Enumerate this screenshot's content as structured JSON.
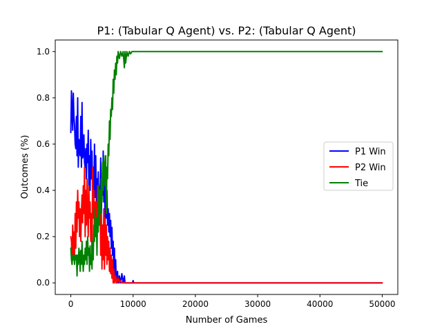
{
  "chart_data": {
    "type": "line",
    "title": "P1: (Tabular Q Agent) vs. P2: (Tabular Q Agent)",
    "xlabel": "Number of Games",
    "ylabel": "Outcomes (%)",
    "xlim": [
      -2500,
      52500
    ],
    "ylim": [
      -0.05,
      1.05
    ],
    "xticks": [
      0,
      10000,
      20000,
      30000,
      40000,
      50000
    ],
    "yticks": [
      0.0,
      0.2,
      0.4,
      0.6,
      0.8,
      1.0
    ],
    "xtick_labels": [
      "0",
      "10000",
      "20000",
      "30000",
      "40000",
      "50000"
    ],
    "ytick_labels": [
      "0.0",
      "0.2",
      "0.4",
      "0.6",
      "0.8",
      "1.0"
    ],
    "grid": false,
    "legend_position": "center-right",
    "series": [
      {
        "name": "P1 Win",
        "color": "#0000ff",
        "points": [
          [
            0,
            0.65
          ],
          [
            100,
            0.83
          ],
          [
            300,
            0.66
          ],
          [
            400,
            0.82
          ],
          [
            500,
            0.72
          ],
          [
            600,
            0.68
          ],
          [
            700,
            0.6
          ],
          [
            800,
            0.58
          ],
          [
            900,
            0.72
          ],
          [
            1000,
            0.55
          ],
          [
            1100,
            0.8
          ],
          [
            1200,
            0.5
          ],
          [
            1300,
            0.62
          ],
          [
            1400,
            0.58
          ],
          [
            1500,
            0.55
          ],
          [
            1600,
            0.72
          ],
          [
            1700,
            0.5
          ],
          [
            1800,
            0.78
          ],
          [
            1900,
            0.54
          ],
          [
            2000,
            0.55
          ],
          [
            2100,
            0.64
          ],
          [
            2200,
            0.52
          ],
          [
            2300,
            0.5
          ],
          [
            2400,
            0.58
          ],
          [
            2500,
            0.45
          ],
          [
            2600,
            0.6
          ],
          [
            2700,
            0.52
          ],
          [
            2800,
            0.66
          ],
          [
            2900,
            0.4
          ],
          [
            3000,
            0.55
          ],
          [
            3100,
            0.4
          ],
          [
            3200,
            0.62
          ],
          [
            3300,
            0.45
          ],
          [
            3400,
            0.57
          ],
          [
            3500,
            0.38
          ],
          [
            3600,
            0.5
          ],
          [
            3700,
            0.35
          ],
          [
            3800,
            0.6
          ],
          [
            3900,
            0.37
          ],
          [
            4000,
            0.55
          ],
          [
            4100,
            0.35
          ],
          [
            4200,
            0.45
          ],
          [
            4300,
            0.3
          ],
          [
            4400,
            0.48
          ],
          [
            4500,
            0.32
          ],
          [
            4600,
            0.42
          ],
          [
            4700,
            0.38
          ],
          [
            4800,
            0.54
          ],
          [
            4900,
            0.3
          ],
          [
            5000,
            0.45
          ],
          [
            5100,
            0.38
          ],
          [
            5200,
            0.57
          ],
          [
            5300,
            0.35
          ],
          [
            5400,
            0.5
          ],
          [
            5500,
            0.25
          ],
          [
            5600,
            0.48
          ],
          [
            5700,
            0.28
          ],
          [
            5800,
            0.4
          ],
          [
            5900,
            0.25
          ],
          [
            6000,
            0.32
          ],
          [
            6100,
            0.22
          ],
          [
            6200,
            0.3
          ],
          [
            6300,
            0.2
          ],
          [
            6400,
            0.27
          ],
          [
            6500,
            0.15
          ],
          [
            6600,
            0.24
          ],
          [
            6700,
            0.12
          ],
          [
            6800,
            0.18
          ],
          [
            6900,
            0.05
          ],
          [
            7000,
            0.15
          ],
          [
            7100,
            0.03
          ],
          [
            7200,
            0.1
          ],
          [
            7300,
            0.0
          ],
          [
            7500,
            0.05
          ],
          [
            7600,
            0.0
          ],
          [
            7800,
            0.03
          ],
          [
            8000,
            0.0
          ],
          [
            8200,
            0.04
          ],
          [
            8400,
            0.0
          ],
          [
            8600,
            0.03
          ],
          [
            8700,
            0.0
          ],
          [
            9900,
            0.0
          ],
          [
            10000,
            0.01
          ],
          [
            10100,
            0.0
          ],
          [
            50000,
            0.0
          ]
        ]
      },
      {
        "name": "P2 Win",
        "color": "#ff0000",
        "points": [
          [
            0,
            0.2
          ],
          [
            100,
            0.18
          ],
          [
            200,
            0.08
          ],
          [
            300,
            0.25
          ],
          [
            400,
            0.1
          ],
          [
            500,
            0.22
          ],
          [
            600,
            0.12
          ],
          [
            700,
            0.3
          ],
          [
            800,
            0.15
          ],
          [
            900,
            0.35
          ],
          [
            1000,
            0.22
          ],
          [
            1100,
            0.4
          ],
          [
            1200,
            0.28
          ],
          [
            1300,
            0.35
          ],
          [
            1400,
            0.2
          ],
          [
            1500,
            0.32
          ],
          [
            1600,
            0.18
          ],
          [
            1700,
            0.3
          ],
          [
            1800,
            0.38
          ],
          [
            1900,
            0.26
          ],
          [
            2000,
            0.42
          ],
          [
            2100,
            0.3
          ],
          [
            2200,
            0.5
          ],
          [
            2300,
            0.2
          ],
          [
            2400,
            0.4
          ],
          [
            2500,
            0.25
          ],
          [
            2600,
            0.45
          ],
          [
            2700,
            0.3
          ],
          [
            2800,
            0.2
          ],
          [
            2900,
            0.42
          ],
          [
            3000,
            0.28
          ],
          [
            3100,
            0.35
          ],
          [
            3200,
            0.18
          ],
          [
            3300,
            0.3
          ],
          [
            3400,
            0.1
          ],
          [
            3500,
            0.5
          ],
          [
            3600,
            0.28
          ],
          [
            3700,
            0.4
          ],
          [
            3800,
            0.2
          ],
          [
            3900,
            0.35
          ],
          [
            4000,
            0.22
          ],
          [
            4100,
            0.35
          ],
          [
            4200,
            0.25
          ],
          [
            4300,
            0.42
          ],
          [
            4400,
            0.28
          ],
          [
            4500,
            0.4
          ],
          [
            4600,
            0.3
          ],
          [
            4700,
            0.35
          ],
          [
            4800,
            0.12
          ],
          [
            4900,
            0.3
          ],
          [
            5000,
            0.06
          ],
          [
            5100,
            0.25
          ],
          [
            5200,
            0.1
          ],
          [
            5300,
            0.32
          ],
          [
            5400,
            0.06
          ],
          [
            5500,
            0.28
          ],
          [
            5600,
            0.12
          ],
          [
            5700,
            0.25
          ],
          [
            5800,
            0.08
          ],
          [
            5900,
            0.2
          ],
          [
            6000,
            0.1
          ],
          [
            6100,
            0.18
          ],
          [
            6200,
            0.05
          ],
          [
            6300,
            0.15
          ],
          [
            6400,
            0.04
          ],
          [
            6500,
            0.12
          ],
          [
            6600,
            0.02
          ],
          [
            6700,
            0.1
          ],
          [
            6800,
            0.0
          ],
          [
            6900,
            0.06
          ],
          [
            7000,
            0.0
          ],
          [
            7200,
            0.03
          ],
          [
            7400,
            0.0
          ],
          [
            7600,
            0.02
          ],
          [
            7800,
            0.0
          ],
          [
            8000,
            0.01
          ],
          [
            8200,
            0.0
          ],
          [
            50000,
            0.0
          ]
        ]
      },
      {
        "name": "Tie",
        "color": "#008000",
        "points": [
          [
            0,
            0.15
          ],
          [
            100,
            0.1
          ],
          [
            200,
            0.08
          ],
          [
            300,
            0.12
          ],
          [
            400,
            0.1
          ],
          [
            500,
            0.12
          ],
          [
            600,
            0.08
          ],
          [
            700,
            0.12
          ],
          [
            800,
            0.1
          ],
          [
            900,
            0.12
          ],
          [
            1000,
            0.03
          ],
          [
            1100,
            0.12
          ],
          [
            1200,
            0.08
          ],
          [
            1300,
            0.15
          ],
          [
            1400,
            0.12
          ],
          [
            1500,
            0.05
          ],
          [
            1600,
            0.14
          ],
          [
            1700,
            0.08
          ],
          [
            1800,
            0.18
          ],
          [
            1900,
            0.1
          ],
          [
            2000,
            0.05
          ],
          [
            2100,
            0.12
          ],
          [
            2200,
            0.08
          ],
          [
            2300,
            0.15
          ],
          [
            2400,
            0.1
          ],
          [
            2500,
            0.18
          ],
          [
            2600,
            0.08
          ],
          [
            2700,
            0.2
          ],
          [
            2800,
            0.12
          ],
          [
            2900,
            0.15
          ],
          [
            3000,
            0.05
          ],
          [
            3100,
            0.16
          ],
          [
            3200,
            0.08
          ],
          [
            3300,
            0.12
          ],
          [
            3400,
            0.06
          ],
          [
            3500,
            0.18
          ],
          [
            3600,
            0.1
          ],
          [
            3700,
            0.25
          ],
          [
            3800,
            0.18
          ],
          [
            3900,
            0.32
          ],
          [
            4000,
            0.2
          ],
          [
            4100,
            0.28
          ],
          [
            4200,
            0.12
          ],
          [
            4300,
            0.3
          ],
          [
            4400,
            0.22
          ],
          [
            4500,
            0.42
          ],
          [
            4600,
            0.25
          ],
          [
            4700,
            0.4
          ],
          [
            4800,
            0.3
          ],
          [
            4900,
            0.45
          ],
          [
            5000,
            0.35
          ],
          [
            5100,
            0.52
          ],
          [
            5200,
            0.4
          ],
          [
            5300,
            0.55
          ],
          [
            5400,
            0.5
          ],
          [
            5500,
            0.42
          ],
          [
            5600,
            0.55
          ],
          [
            5700,
            0.3
          ],
          [
            5800,
            0.5
          ],
          [
            5900,
            0.45
          ],
          [
            6000,
            0.6
          ],
          [
            6100,
            0.55
          ],
          [
            6200,
            0.7
          ],
          [
            6300,
            0.62
          ],
          [
            6400,
            0.75
          ],
          [
            6500,
            0.72
          ],
          [
            6600,
            0.8
          ],
          [
            6700,
            0.75
          ],
          [
            6800,
            0.88
          ],
          [
            6900,
            0.82
          ],
          [
            7000,
            0.92
          ],
          [
            7100,
            0.88
          ],
          [
            7200,
            0.95
          ],
          [
            7300,
            0.9
          ],
          [
            7400,
            0.98
          ],
          [
            7500,
            0.95
          ],
          [
            7600,
            1.0
          ],
          [
            7800,
            0.97
          ],
          [
            8000,
            1.0
          ],
          [
            8200,
            0.98
          ],
          [
            8400,
            1.0
          ],
          [
            8600,
            0.93
          ],
          [
            8700,
            1.0
          ],
          [
            8800,
            0.95
          ],
          [
            9000,
            1.0
          ],
          [
            9200,
            0.98
          ],
          [
            9400,
            1.0
          ],
          [
            9600,
            0.99
          ],
          [
            9800,
            1.0
          ],
          [
            50000,
            1.0
          ]
        ]
      }
    ]
  }
}
